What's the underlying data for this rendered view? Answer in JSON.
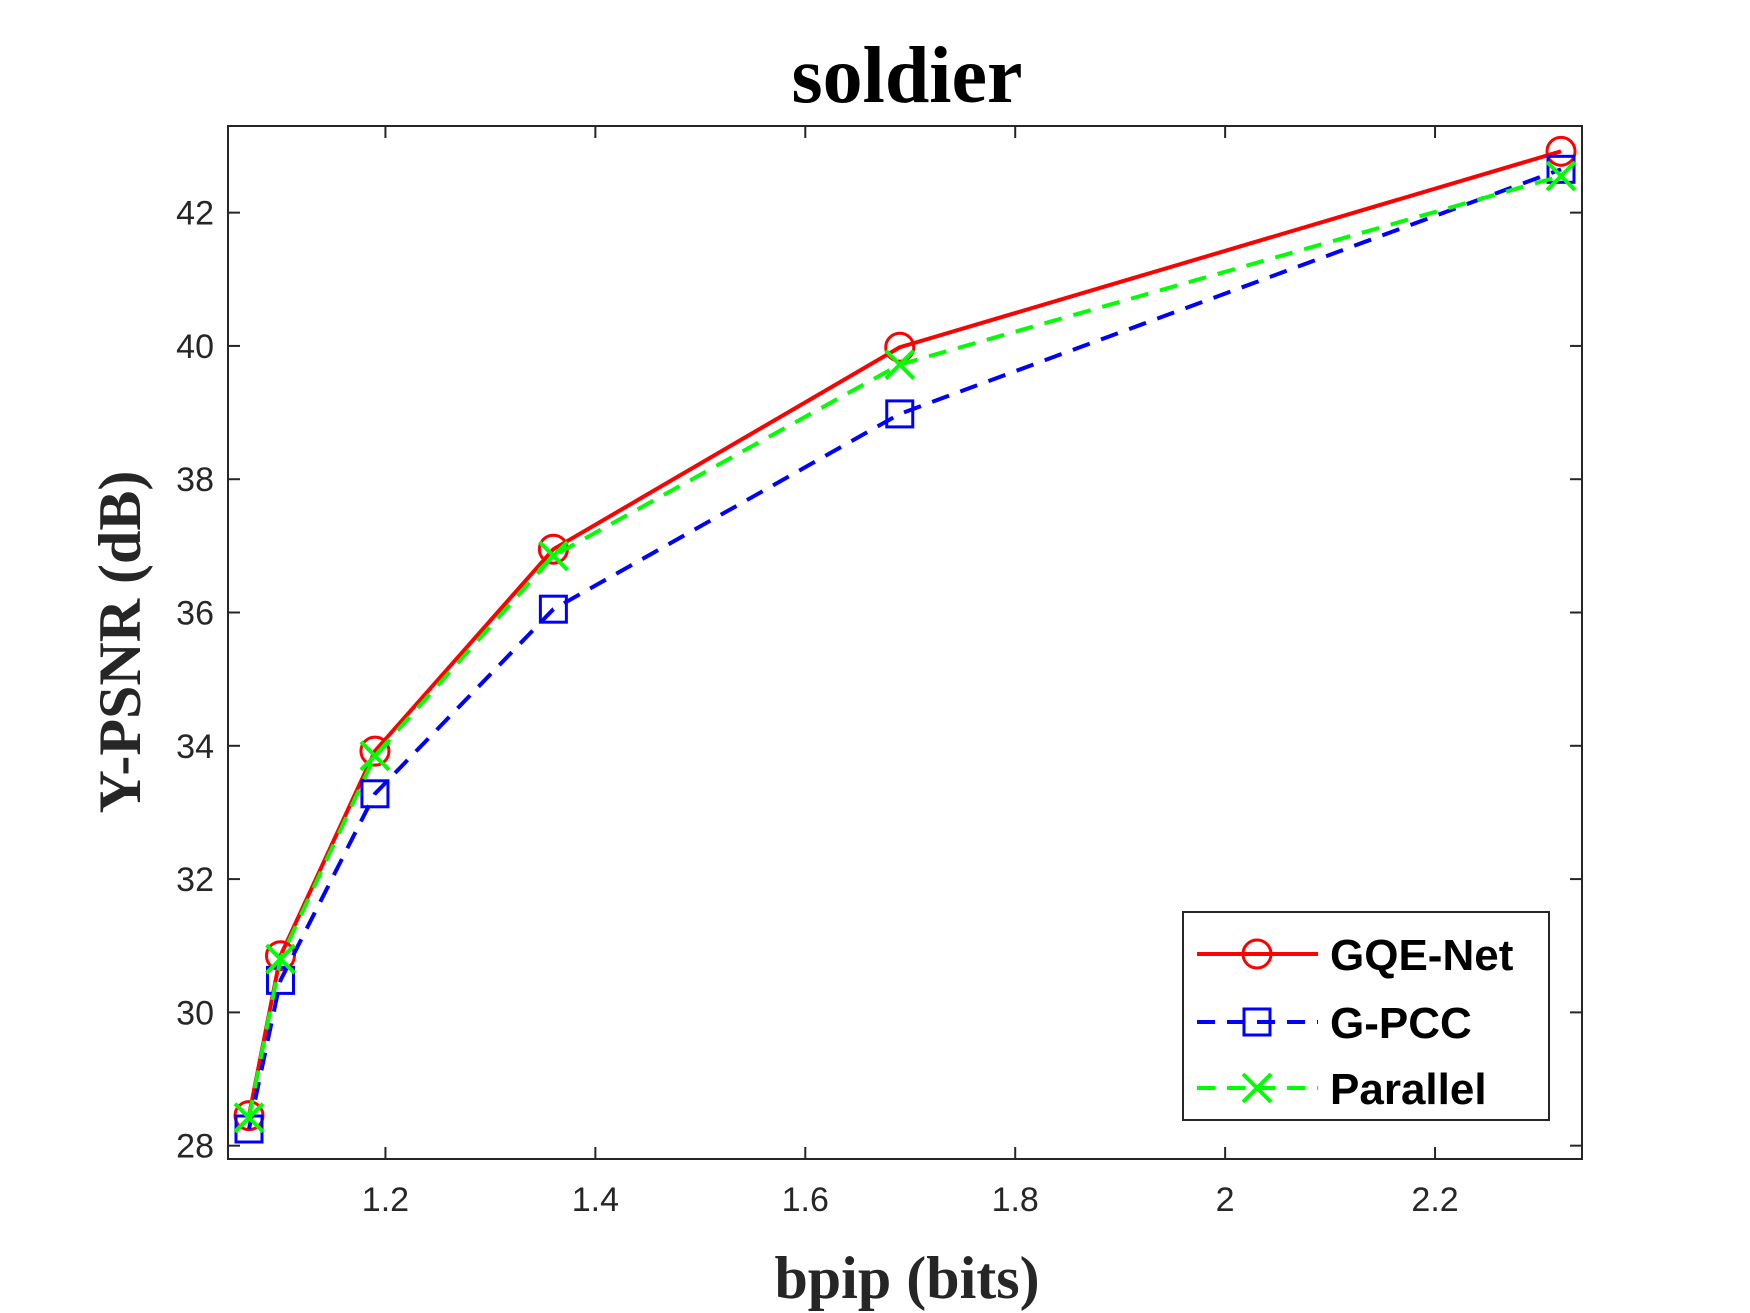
{
  "chart_data": {
    "type": "line",
    "title": "soldier",
    "xlabel": "bpip (bits)",
    "ylabel": "Y-PSNR (dB)",
    "xlim": [
      1.05,
      2.34
    ],
    "ylim": [
      27.8,
      43.3
    ],
    "xticks": [
      1.2,
      1.4,
      1.6,
      1.8,
      2,
      2.2
    ],
    "xtick_labels": [
      "1.2",
      "1.4",
      "1.6",
      "1.8",
      "2",
      "2.2"
    ],
    "yticks": [
      28,
      30,
      32,
      34,
      36,
      38,
      40,
      42
    ],
    "ytick_labels": [
      "28",
      "30",
      "32",
      "34",
      "36",
      "38",
      "40",
      "42"
    ],
    "grid": false,
    "legend_position": "bottom-right",
    "series": [
      {
        "name": "GQE-Net",
        "color": "#ff0000",
        "line_style": "solid",
        "marker": "circle",
        "x": [
          1.07,
          1.1,
          1.19,
          1.36,
          1.69,
          2.32
        ],
        "y": [
          28.45,
          30.85,
          33.92,
          36.95,
          39.98,
          42.92
        ]
      },
      {
        "name": "G-PCC",
        "color": "#0000ff",
        "line_style": "dashed",
        "marker": "square",
        "x": [
          1.07,
          1.1,
          1.19,
          1.36,
          1.69,
          2.32
        ],
        "y": [
          28.25,
          30.48,
          33.28,
          36.05,
          38.98,
          42.65
        ]
      },
      {
        "name": "Parallel",
        "color": "#00ff00",
        "line_style": "dashed",
        "marker": "x",
        "x": [
          1.07,
          1.1,
          1.19,
          1.36,
          1.69,
          2.32
        ],
        "y": [
          28.42,
          30.8,
          33.85,
          36.85,
          39.72,
          42.55
        ]
      }
    ]
  }
}
